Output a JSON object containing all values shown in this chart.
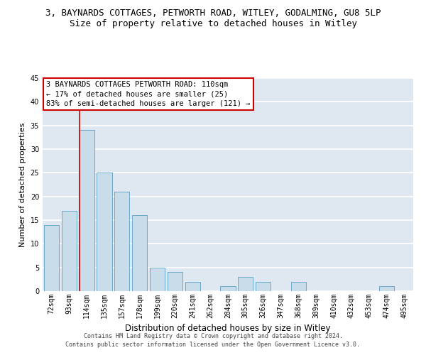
{
  "title": "3, BAYNARDS COTTAGES, PETWORTH ROAD, WITLEY, GODALMING, GU8 5LP",
  "subtitle": "Size of property relative to detached houses in Witley",
  "xlabel": "Distribution of detached houses by size in Witley",
  "ylabel": "Number of detached properties",
  "categories": [
    "72sqm",
    "93sqm",
    "114sqm",
    "135sqm",
    "157sqm",
    "178sqm",
    "199sqm",
    "220sqm",
    "241sqm",
    "262sqm",
    "284sqm",
    "305sqm",
    "326sqm",
    "347sqm",
    "368sqm",
    "389sqm",
    "410sqm",
    "432sqm",
    "453sqm",
    "474sqm",
    "495sqm"
  ],
  "values": [
    14,
    17,
    34,
    25,
    21,
    16,
    5,
    4,
    2,
    0,
    1,
    3,
    2,
    0,
    2,
    0,
    0,
    0,
    0,
    1,
    0
  ],
  "bar_color": "#c9dcea",
  "bar_edge_color": "#5a9fc5",
  "vline_color": "#cc0000",
  "vline_pos": 1.575,
  "ylim": [
    0,
    45
  ],
  "yticks": [
    0,
    5,
    10,
    15,
    20,
    25,
    30,
    35,
    40,
    45
  ],
  "annotation_text": "3 BAYNARDS COTTAGES PETWORTH ROAD: 110sqm\n← 17% of detached houses are smaller (25)\n83% of semi-detached houses are larger (121) →",
  "annotation_box_color": "#ffffff",
  "annotation_box_edge": "#cc0000",
  "footer_line1": "Contains HM Land Registry data © Crown copyright and database right 2024.",
  "footer_line2": "Contains public sector information licensed under the Open Government Licence v3.0.",
  "background_color": "#dfe8f0",
  "grid_color": "#ffffff",
  "title_fontsize": 9,
  "subtitle_fontsize": 9,
  "tick_fontsize": 7,
  "ylabel_fontsize": 8,
  "xlabel_fontsize": 8.5,
  "annotation_fontsize": 7.5,
  "footer_fontsize": 6
}
